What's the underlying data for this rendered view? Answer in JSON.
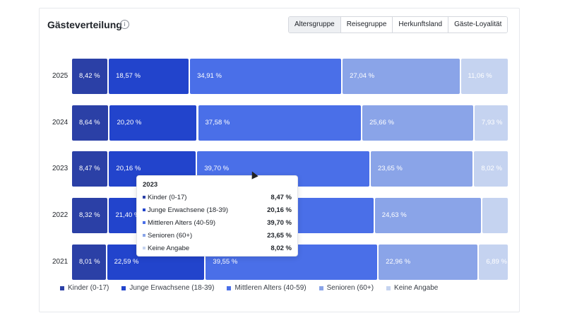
{
  "title": "Gästeverteilung",
  "tabs": [
    "Altersgruppe",
    "Reisegruppe",
    "Herkunftsland",
    "Gäste-Loyalität"
  ],
  "active_tab": 0,
  "colors": [
    "#2b40a6",
    "#2244cc",
    "#4a6fe8",
    "#8aa4e8",
    "#c5d3f0"
  ],
  "chart_data": {
    "type": "bar",
    "orientation": "horizontal",
    "stacked": true,
    "normalized": true,
    "categories": [
      "2025",
      "2024",
      "2023",
      "2022",
      "2021"
    ],
    "series": [
      {
        "name": "Kinder (0-17)",
        "values": [
          8.42,
          8.64,
          8.47,
          8.32,
          8.01
        ],
        "labels": [
          "8,42 %",
          "8,64 %",
          "8,47 %",
          "8,32 %",
          "8,01 %"
        ]
      },
      {
        "name": "Junge Erwachsene (18-39)",
        "values": [
          18.57,
          20.2,
          20.16,
          21.4,
          22.59
        ],
        "labels": [
          "18,57 %",
          "20,20 %",
          "20,16 %",
          "21,40 %",
          "22,59 %"
        ]
      },
      {
        "name": "Mittleren Alters (40-59)",
        "values": [
          34.91,
          37.58,
          39.7,
          39.55,
          39.55
        ],
        "labels": [
          "34,91 %",
          "37,58 %",
          "39,70 %",
          "",
          "39,55 %"
        ]
      },
      {
        "name": "Senioren (60+)",
        "values": [
          27.04,
          25.66,
          23.65,
          24.63,
          22.96
        ],
        "labels": [
          "27,04 %",
          "25,66 %",
          "23,65 %",
          "24,63 %",
          "22,96 %"
        ]
      },
      {
        "name": "Keine Angabe",
        "values": [
          11.06,
          7.93,
          8.02,
          6.1,
          6.89
        ],
        "labels": [
          "11,06 %",
          "7,93 %",
          "8,02 %",
          "",
          "6,89 %"
        ]
      }
    ],
    "legend": "bottom"
  },
  "tooltip": {
    "title": "2023",
    "rows": [
      {
        "label": "Kinder (0-17)",
        "value": "8,47 %"
      },
      {
        "label": "Junge Erwachsene (18-39)",
        "value": "20,16 %"
      },
      {
        "label": "Mittleren Alters (40-59)",
        "value": "39,70 %"
      },
      {
        "label": "Senioren (60+)",
        "value": "23,65 %"
      },
      {
        "label": "Keine Angabe",
        "value": "8,02 %"
      }
    ]
  }
}
